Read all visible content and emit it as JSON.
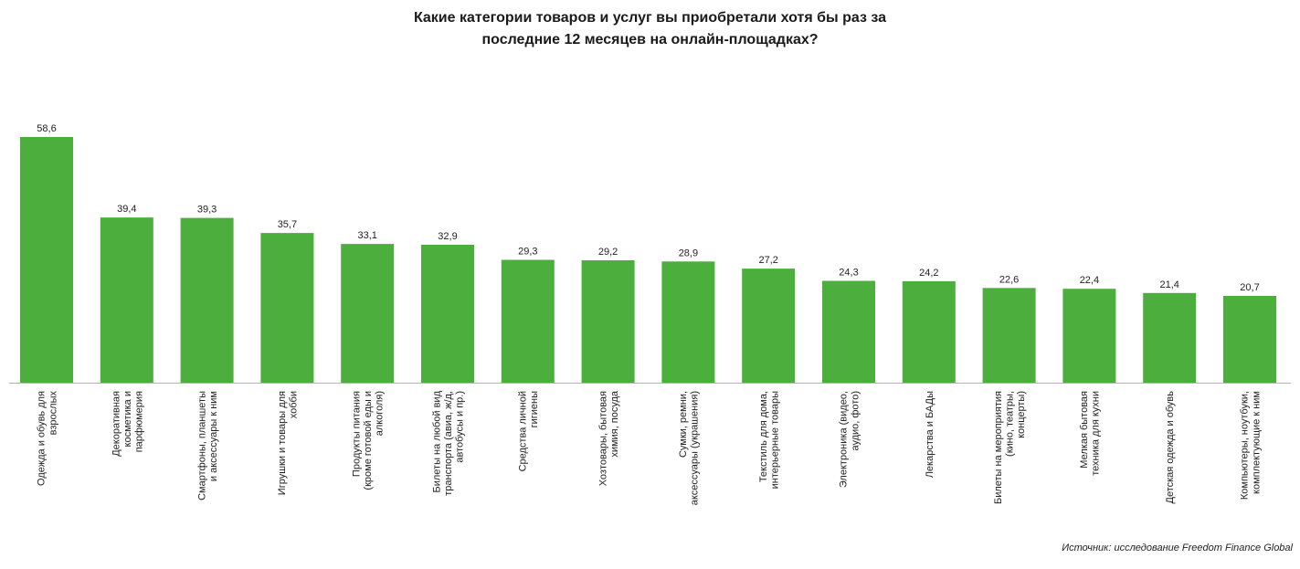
{
  "chart_data": {
    "type": "bar",
    "title_lines": [
      "Какие категории товаров и услуг вы приобретали хотя бы раз за",
      "последние 12 месяцев на онлайн-площадках?"
    ],
    "categories": [
      "Одежда и обувь для взрослых",
      "Декоративная косметика и парфюмерия",
      "Смартфоны, планшеты и аксессуары к ним",
      "Игрушки и товары для хобби",
      "Продукты питания (кроме готовой еды и алкоголя)",
      "Билеты на любой вид транспорта (авиа, ж/д, автобусы и пр.)",
      "Средства личной гигиены",
      "Хозтовары, бытовая химия, посуда",
      "Сумки, ремни, аксессуары (украшения)",
      "Текстиль для дома, интерьерные товары",
      "Электроника (видео, аудио, фото)",
      "Лекарства и БАДы",
      "Билеты на мероприятия (кино, театры, концерты)",
      "Мелкая бытовая техника для кухни",
      "Детская одежда и обувь",
      "Компьютеры, ноутбуки, комплектующие к ним"
    ],
    "category_label_lines": [
      [
        "Одежда и обувь для",
        "взрослых"
      ],
      [
        "Декоративная",
        "косметика и",
        "парфюмерия"
      ],
      [
        "Смартфоны, планшеты",
        "и аксессуары к ним"
      ],
      [
        "Игрушки и товары для",
        "хобби"
      ],
      [
        "Продукты питания",
        "(кроме готовой еды и",
        "алкоголя)"
      ],
      [
        "Билеты на любой вид",
        "транспорта (авиа, ж/д,",
        "автобусы и пр.)"
      ],
      [
        "Средства личной",
        "гигиены"
      ],
      [
        "Хозтовары, бытовая",
        "химия, посуда"
      ],
      [
        "Сумки, ремни,",
        "аксессуары (украшения)"
      ],
      [
        "Текстиль для дома,",
        "интерьерные товары"
      ],
      [
        "Электроника (видео,",
        "аудио, фото)"
      ],
      [
        "Лекарства и БАДы"
      ],
      [
        "Билеты на мероприятия",
        "(кино, театры,",
        "концерты)"
      ],
      [
        "Мелкая бытовая",
        "техника для кухни"
      ],
      [
        "Детская одежда и обувь"
      ],
      [
        "Компьютеры, ноутбуки,",
        "комплектующие к ним"
      ]
    ],
    "values": [
      58.6,
      39.4,
      39.3,
      35.7,
      33.1,
      32.9,
      29.3,
      29.2,
      28.9,
      27.2,
      24.3,
      24.2,
      22.6,
      22.4,
      21.4,
      20.7
    ],
    "value_labels": [
      "58,6",
      "39,4",
      "39,3",
      "35,7",
      "33,1",
      "32,9",
      "29,3",
      "29,2",
      "28,9",
      "27,2",
      "24,3",
      "24,2",
      "22,6",
      "22,4",
      "21,4",
      "20,7"
    ],
    "ylim": [
      0,
      60
    ],
    "xlabel": "",
    "ylabel": "",
    "grid": false,
    "legend": "none",
    "bar_color": "#4caf3d",
    "axis_color": "#b5b5b5"
  },
  "source_note": "Источник: исследование Freedom Finance Global"
}
